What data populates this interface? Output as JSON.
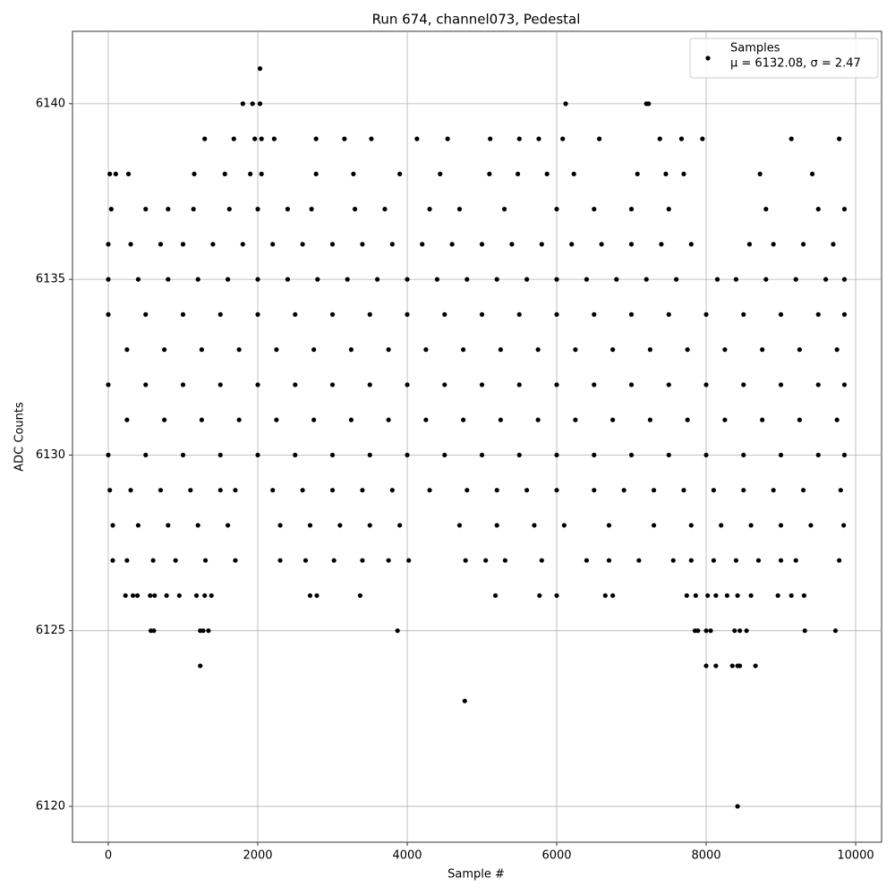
{
  "chart_data": {
    "type": "scatter",
    "title": "Run 674, channel073, Pedestal",
    "x_label": "Sample #",
    "y_label": "ADC Counts",
    "xlim": [
      -479,
      10347
    ],
    "xticks": [
      0,
      2000,
      4000,
      6000,
      8000,
      10000
    ],
    "ylim": [
      6118.98,
      6142.06
    ],
    "yticks": [
      6120,
      6125,
      6130,
      6135,
      6140
    ],
    "grid": true,
    "legend": "upper right",
    "series": [
      {
        "name": "Samples",
        "label_extra": "μ = 6132.08, σ = 2.47",
        "color": "#000000",
        "x": [
          2030,
          1800,
          1930,
          2030,
          6120,
          7200,
          7230,
          1290,
          1680,
          1960,
          2050,
          2220,
          2780,
          3160,
          3520,
          4130,
          4540,
          5110,
          5500,
          5760,
          6080,
          6570,
          7380,
          7670,
          7950,
          9140,
          9780,
          20,
          100,
          270,
          1150,
          1560,
          1900,
          2050,
          2780,
          3280,
          3900,
          4440,
          5100,
          5480,
          5870,
          6230,
          7080,
          7460,
          7700,
          8720,
          9420,
          40,
          500,
          800,
          1140,
          1620,
          2000,
          2400,
          2720,
          3300,
          3700,
          4300,
          4700,
          5300,
          6000,
          6500,
          7000,
          7500,
          8800,
          9500,
          9850,
          0,
          300,
          700,
          1000,
          1400,
          1800,
          2200,
          2600,
          3000,
          3400,
          3800,
          4200,
          4600,
          5000,
          5400,
          5800,
          6200,
          6600,
          7000,
          7400,
          7800,
          8580,
          8900,
          9300,
          9700,
          0,
          400,
          800,
          1200,
          1600,
          2000,
          2400,
          2800,
          3200,
          3600,
          4000,
          4400,
          4800,
          5200,
          5600,
          6000,
          6400,
          6800,
          7200,
          7600,
          8150,
          8400,
          8800,
          9200,
          9600,
          9850,
          0,
          500,
          1000,
          1500,
          2000,
          2500,
          3000,
          3500,
          4000,
          4500,
          5000,
          5500,
          6000,
          6500,
          7000,
          7500,
          8000,
          8500,
          9000,
          9500,
          9850,
          250,
          750,
          1250,
          1750,
          2250,
          2750,
          3250,
          3750,
          4250,
          4750,
          5250,
          5750,
          6250,
          6750,
          7250,
          7750,
          8250,
          8750,
          9250,
          9750,
          0,
          500,
          1000,
          1500,
          2000,
          2500,
          3000,
          3500,
          4000,
          4500,
          5000,
          5500,
          6000,
          6500,
          7000,
          7500,
          8000,
          8500,
          9000,
          9500,
          9850,
          250,
          750,
          1250,
          1750,
          2250,
          2750,
          3250,
          3750,
          4250,
          4750,
          5250,
          5750,
          6250,
          6750,
          7250,
          7750,
          8250,
          8750,
          9250,
          9750,
          0,
          500,
          1000,
          1500,
          2000,
          2500,
          3000,
          3500,
          4000,
          4500,
          5000,
          5500,
          6000,
          6500,
          7000,
          7500,
          8000,
          8500,
          9000,
          9500,
          9850,
          20,
          300,
          700,
          1100,
          1500,
          1700,
          2200,
          2600,
          3000,
          3400,
          3800,
          4300,
          4800,
          5200,
          5600,
          6000,
          6500,
          6900,
          7300,
          7700,
          8100,
          8500,
          8900,
          9300,
          9800,
          60,
          400,
          800,
          1200,
          1600,
          2300,
          2700,
          3100,
          3500,
          3900,
          4700,
          5200,
          5700,
          6100,
          6700,
          7300,
          7800,
          8200,
          8600,
          9000,
          9400,
          9840,
          60,
          250,
          600,
          900,
          1300,
          1700,
          2300,
          2640,
          3020,
          3400,
          3750,
          4020,
          4780,
          5050,
          5310,
          5800,
          6400,
          6700,
          7100,
          7560,
          7800,
          8100,
          8400,
          8700,
          9000,
          9200,
          9780,
          230,
          330,
          390,
          560,
          620,
          780,
          950,
          1180,
          1290,
          1380,
          2700,
          2790,
          3370,
          5180,
          5770,
          6000,
          6650,
          6750,
          7740,
          7860,
          8020,
          8130,
          8280,
          8420,
          8600,
          8960,
          9140,
          9310,
          570,
          610,
          1230,
          1270,
          1340,
          3870,
          7850,
          7890,
          8000,
          8060,
          8380,
          8450,
          8540,
          9320,
          9730,
          1230,
          8000,
          8130,
          8350,
          8420,
          8450,
          8660,
          4770,
          8420
        ],
        "values": [
          6141,
          6140,
          6140,
          6140,
          6140,
          6140,
          6140,
          6139,
          6139,
          6139,
          6139,
          6139,
          6139,
          6139,
          6139,
          6139,
          6139,
          6139,
          6139,
          6139,
          6139,
          6139,
          6139,
          6139,
          6139,
          6139,
          6139,
          6138,
          6138,
          6138,
          6138,
          6138,
          6138,
          6138,
          6138,
          6138,
          6138,
          6138,
          6138,
          6138,
          6138,
          6138,
          6138,
          6138,
          6138,
          6138,
          6138,
          6137,
          6137,
          6137,
          6137,
          6137,
          6137,
          6137,
          6137,
          6137,
          6137,
          6137,
          6137,
          6137,
          6137,
          6137,
          6137,
          6137,
          6137,
          6137,
          6137,
          6136,
          6136,
          6136,
          6136,
          6136,
          6136,
          6136,
          6136,
          6136,
          6136,
          6136,
          6136,
          6136,
          6136,
          6136,
          6136,
          6136,
          6136,
          6136,
          6136,
          6136,
          6136,
          6136,
          6136,
          6136,
          6135,
          6135,
          6135,
          6135,
          6135,
          6135,
          6135,
          6135,
          6135,
          6135,
          6135,
          6135,
          6135,
          6135,
          6135,
          6135,
          6135,
          6135,
          6135,
          6135,
          6135,
          6135,
          6135,
          6135,
          6135,
          6135,
          6134,
          6134,
          6134,
          6134,
          6134,
          6134,
          6134,
          6134,
          6134,
          6134,
          6134,
          6134,
          6134,
          6134,
          6134,
          6134,
          6134,
          6134,
          6134,
          6134,
          6134,
          6133,
          6133,
          6133,
          6133,
          6133,
          6133,
          6133,
          6133,
          6133,
          6133,
          6133,
          6133,
          6133,
          6133,
          6133,
          6133,
          6133,
          6133,
          6133,
          6133,
          6132,
          6132,
          6132,
          6132,
          6132,
          6132,
          6132,
          6132,
          6132,
          6132,
          6132,
          6132,
          6132,
          6132,
          6132,
          6132,
          6132,
          6132,
          6132,
          6132,
          6132,
          6131,
          6131,
          6131,
          6131,
          6131,
          6131,
          6131,
          6131,
          6131,
          6131,
          6131,
          6131,
          6131,
          6131,
          6131,
          6131,
          6131,
          6131,
          6131,
          6131,
          6130,
          6130,
          6130,
          6130,
          6130,
          6130,
          6130,
          6130,
          6130,
          6130,
          6130,
          6130,
          6130,
          6130,
          6130,
          6130,
          6130,
          6130,
          6130,
          6130,
          6130,
          6129,
          6129,
          6129,
          6129,
          6129,
          6129,
          6129,
          6129,
          6129,
          6129,
          6129,
          6129,
          6129,
          6129,
          6129,
          6129,
          6129,
          6129,
          6129,
          6129,
          6129,
          6129,
          6129,
          6129,
          6129,
          6128,
          6128,
          6128,
          6128,
          6128,
          6128,
          6128,
          6128,
          6128,
          6128,
          6128,
          6128,
          6128,
          6128,
          6128,
          6128,
          6128,
          6128,
          6128,
          6128,
          6128,
          6128,
          6127,
          6127,
          6127,
          6127,
          6127,
          6127,
          6127,
          6127,
          6127,
          6127,
          6127,
          6127,
          6127,
          6127,
          6127,
          6127,
          6127,
          6127,
          6127,
          6127,
          6127,
          6127,
          6127,
          6127,
          6127,
          6127,
          6127,
          6126,
          6126,
          6126,
          6126,
          6126,
          6126,
          6126,
          6126,
          6126,
          6126,
          6126,
          6126,
          6126,
          6126,
          6126,
          6126,
          6126,
          6126,
          6126,
          6126,
          6126,
          6126,
          6126,
          6126,
          6126,
          6126,
          6126,
          6126,
          6125,
          6125,
          6125,
          6125,
          6125,
          6125,
          6125,
          6125,
          6125,
          6125,
          6125,
          6125,
          6125,
          6125,
          6125,
          6124,
          6124,
          6124,
          6124,
          6124,
          6124,
          6124,
          6123,
          6120
        ]
      }
    ]
  }
}
